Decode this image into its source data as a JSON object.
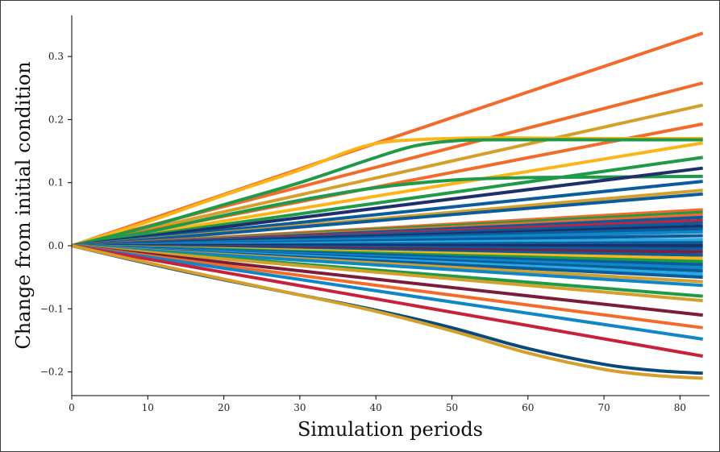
{
  "chart_data": {
    "type": "line",
    "title": "",
    "xlabel": "Simulation periods",
    "ylabel": "Change from initial condition",
    "xlim": [
      0,
      84
    ],
    "ylim": [
      -0.24,
      0.36
    ],
    "xticks": [
      0,
      10,
      20,
      30,
      40,
      50,
      60,
      70,
      80
    ],
    "yticks": [
      -0.2,
      -0.1,
      0.0,
      0.1,
      0.2,
      0.3
    ],
    "xtick_labels": [
      "0",
      "10",
      "20",
      "30",
      "40",
      "50",
      "60",
      "70",
      "80"
    ],
    "ytick_labels": [
      "−0.2",
      "−0.1",
      "0.0",
      "0.1",
      "0.2",
      "0.3"
    ],
    "grid": false,
    "legend": "none",
    "series": [
      {
        "color": "#f26b2a",
        "x": [
          0,
          83
        ],
        "y": [
          0,
          0.337
        ]
      },
      {
        "color": "#f26b2a",
        "x": [
          0,
          83
        ],
        "y": [
          0,
          0.258
        ]
      },
      {
        "color": "#d4a02b",
        "x": [
          0,
          83
        ],
        "y": [
          0,
          0.223
        ]
      },
      {
        "color": "#f26b2a",
        "x": [
          0,
          83
        ],
        "y": [
          0,
          0.193
        ]
      },
      {
        "color": "#fbb517",
        "x": [
          0,
          10,
          20,
          30,
          36,
          40,
          45,
          55,
          70,
          83
        ],
        "y": [
          0,
          0.038,
          0.08,
          0.12,
          0.148,
          0.162,
          0.168,
          0.171,
          0.17,
          0.17
        ]
      },
      {
        "color": "#1f9a48",
        "x": [
          0,
          10,
          20,
          30,
          40,
          45,
          50,
          55,
          70,
          83
        ],
        "y": [
          0,
          0.03,
          0.065,
          0.1,
          0.14,
          0.158,
          0.166,
          0.168,
          0.168,
          0.168
        ]
      },
      {
        "color": "#fbb517",
        "x": [
          0,
          83
        ],
        "y": [
          0,
          0.163
        ]
      },
      {
        "color": "#1f9a48",
        "x": [
          0,
          83
        ],
        "y": [
          0,
          0.14
        ]
      },
      {
        "color": "#1f9a48",
        "x": [
          0,
          10,
          20,
          30,
          40,
          50,
          60,
          70,
          83
        ],
        "y": [
          0,
          0.022,
          0.048,
          0.072,
          0.092,
          0.104,
          0.108,
          0.109,
          0.11
        ]
      },
      {
        "color": "#1e2f6b",
        "x": [
          0,
          83
        ],
        "y": [
          0,
          0.123
        ]
      },
      {
        "color": "#0a5c9c",
        "x": [
          0,
          83
        ],
        "y": [
          0,
          0.102
        ]
      },
      {
        "color": "#d4a02b",
        "x": [
          0,
          83
        ],
        "y": [
          0,
          0.088
        ]
      },
      {
        "color": "#0a5c9c",
        "x": [
          0,
          83
        ],
        "y": [
          0,
          0.082
        ]
      },
      {
        "color": "#f26b2a",
        "x": [
          0,
          83
        ],
        "y": [
          0,
          0.057
        ]
      },
      {
        "color": "#1f9a48",
        "x": [
          0,
          83
        ],
        "y": [
          0,
          0.053
        ]
      },
      {
        "color": "#f26b2a",
        "x": [
          0,
          83
        ],
        "y": [
          0,
          0.049
        ]
      },
      {
        "color": "#0a5c9c",
        "x": [
          0,
          83
        ],
        "y": [
          0,
          0.045
        ]
      },
      {
        "color": "#c8213b",
        "x": [
          0,
          83
        ],
        "y": [
          0,
          0.04
        ]
      },
      {
        "color": "#0a5c9c",
        "x": [
          0,
          83
        ],
        "y": [
          0,
          0.036
        ]
      },
      {
        "color": "#1c2f66",
        "x": [
          0,
          83
        ],
        "y": [
          0,
          0.031
        ]
      },
      {
        "color": "#0a5c9c",
        "x": [
          0,
          83
        ],
        "y": [
          0,
          0.027
        ]
      },
      {
        "color": "#0f86c6",
        "x": [
          0,
          83
        ],
        "y": [
          0,
          0.022
        ]
      },
      {
        "color": "#0a5c9c",
        "x": [
          0,
          83
        ],
        "y": [
          0,
          0.016
        ]
      },
      {
        "color": "#2aa8e0",
        "x": [
          0,
          83
        ],
        "y": [
          0,
          0.01
        ]
      },
      {
        "color": "#0a5c9c",
        "x": [
          0,
          83
        ],
        "y": [
          0,
          0.005
        ]
      },
      {
        "color": "#1c2f66",
        "x": [
          0,
          83
        ],
        "y": [
          0,
          0.0
        ]
      },
      {
        "color": "#0a5c9c",
        "x": [
          0,
          83
        ],
        "y": [
          0,
          -0.005
        ]
      },
      {
        "color": "#7a2040",
        "x": [
          0,
          83
        ],
        "y": [
          0,
          -0.01
        ]
      },
      {
        "color": "#0a5c9c",
        "x": [
          0,
          83
        ],
        "y": [
          0,
          -0.015
        ]
      },
      {
        "color": "#fbb517",
        "x": [
          0,
          83
        ],
        "y": [
          0,
          -0.02
        ]
      },
      {
        "color": "#1f9a48",
        "x": [
          0,
          83
        ],
        "y": [
          0,
          -0.025
        ]
      },
      {
        "color": "#0a5c9c",
        "x": [
          0,
          83
        ],
        "y": [
          0,
          -0.03
        ]
      },
      {
        "color": "#0f86c6",
        "x": [
          0,
          83
        ],
        "y": [
          0,
          -0.035
        ]
      },
      {
        "color": "#0a5c9c",
        "x": [
          0,
          83
        ],
        "y": [
          0,
          -0.04
        ]
      },
      {
        "color": "#2aa8e0",
        "x": [
          0,
          83
        ],
        "y": [
          0,
          -0.045
        ]
      },
      {
        "color": "#0a5c9c",
        "x": [
          0,
          83
        ],
        "y": [
          0,
          -0.05
        ]
      },
      {
        "color": "#d4a02b",
        "x": [
          0,
          83
        ],
        "y": [
          0,
          -0.057
        ]
      },
      {
        "color": "#0f86c6",
        "x": [
          0,
          83
        ],
        "y": [
          0,
          -0.063
        ]
      },
      {
        "color": "#1f9a48",
        "x": [
          0,
          83
        ],
        "y": [
          0,
          -0.08
        ]
      },
      {
        "color": "#d4a02b",
        "x": [
          0,
          83
        ],
        "y": [
          0,
          -0.087
        ]
      },
      {
        "color": "#7a1c3a",
        "x": [
          0,
          83
        ],
        "y": [
          0,
          -0.11
        ]
      },
      {
        "color": "#f26b2a",
        "x": [
          0,
          83
        ],
        "y": [
          0,
          -0.13
        ]
      },
      {
        "color": "#0f86c6",
        "x": [
          0,
          83
        ],
        "y": [
          0,
          -0.148
        ]
      },
      {
        "color": "#c8213b",
        "x": [
          0,
          83
        ],
        "y": [
          0,
          -0.175
        ]
      },
      {
        "color": "#0a4a7a",
        "x": [
          0,
          10,
          20,
          30,
          40,
          50,
          60,
          70,
          77,
          83
        ],
        "y": [
          0,
          -0.028,
          -0.054,
          -0.078,
          -0.102,
          -0.13,
          -0.163,
          -0.188,
          -0.198,
          -0.202
        ]
      },
      {
        "color": "#d4a02b",
        "x": [
          0,
          10,
          20,
          30,
          40,
          50,
          60,
          70,
          77,
          83
        ],
        "y": [
          0,
          -0.027,
          -0.053,
          -0.078,
          -0.104,
          -0.135,
          -0.17,
          -0.196,
          -0.206,
          -0.21
        ]
      }
    ]
  }
}
